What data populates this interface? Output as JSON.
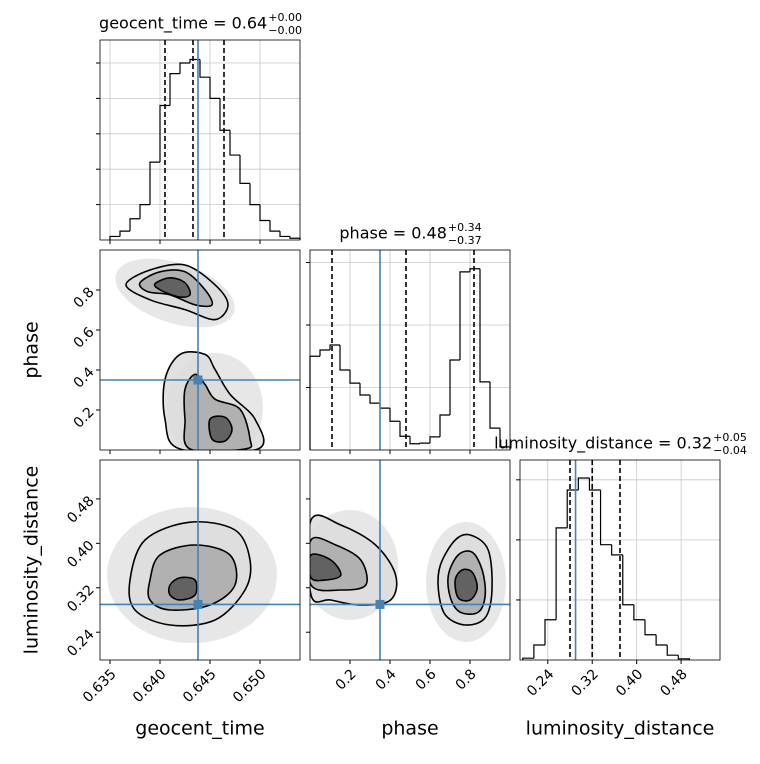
{
  "chart_data": {
    "type": "corner",
    "truth_color": "#4682b4",
    "hist_color": "#000000",
    "contour_fills": [
      "#dcdcdc",
      "#a9a9a9",
      "#555555"
    ],
    "contour_color": "#000000",
    "params": [
      {
        "name": "geocent_time",
        "title": "geocent_time = 0.64",
        "plus": "+0.00",
        "minus": "−0.00",
        "lim": [
          0.634,
          0.654
        ],
        "ticks": [
          0.635,
          {
            "value": 0.64,
            "label": "0.640"
          },
          0.645,
          {
            "value": 0.65,
            "label": "0.650"
          }
        ],
        "truth": 0.6438,
        "quantiles": [
          0.6405,
          0.6433,
          0.6464
        ]
      },
      {
        "name": "phase",
        "title": "phase = 0.48",
        "plus": "+0.34",
        "minus": "−0.37",
        "lim": [
          0,
          1
        ],
        "ticks": [
          0.2,
          0.4,
          0.6,
          0.8
        ],
        "truth": 0.35,
        "quantiles": [
          0.11,
          0.48,
          0.82
        ]
      },
      {
        "name": "luminosity_distance",
        "title": "luminosity_distance = 0.32",
        "plus": "+0.05",
        "minus": "−0.04",
        "lim": [
          0.19,
          0.55
        ],
        "ticks": [
          0.24,
          0.32,
          {
            "value": 0.4,
            "label": "0.40"
          },
          0.48
        ],
        "truth": 0.29,
        "quantiles": [
          0.28,
          0.32,
          0.37
        ]
      }
    ],
    "hists": [
      {
        "bins": [
          0.635,
          0.636,
          0.637,
          0.638,
          0.639,
          0.64,
          0.641,
          0.642,
          0.643,
          0.644,
          0.645,
          0.646,
          0.647,
          0.648,
          0.649,
          0.65,
          0.651,
          0.652,
          0.653,
          0.654
        ],
        "values": [
          0.1,
          0.25,
          0.6,
          1.0,
          2.2,
          3.8,
          4.7,
          5.0,
          5.1,
          4.6,
          4.0,
          3.1,
          2.4,
          1.6,
          1.0,
          0.55,
          0.25,
          0.1,
          0.05
        ],
        "ylim": [
          0,
          5.65
        ],
        "yticks": [
          1,
          2,
          3,
          4,
          5
        ]
      },
      {
        "bins": [
          0,
          0.05,
          0.1,
          0.15,
          0.2,
          0.25,
          0.3,
          0.35,
          0.4,
          0.45,
          0.5,
          0.55,
          0.6,
          0.65,
          0.7,
          0.75,
          0.8,
          0.85,
          0.9,
          0.95,
          1.0
        ],
        "values": [
          1.5,
          1.6,
          1.68,
          1.28,
          1.07,
          0.88,
          0.75,
          0.67,
          0.46,
          0.22,
          0.1,
          0.11,
          0.21,
          0.56,
          1.44,
          2.85,
          2.9,
          1.09,
          0.35,
          0.05
        ],
        "ylim": [
          0,
          3.2
        ],
        "yticks": [
          1,
          2,
          3
        ]
      },
      {
        "bins": [
          0.195,
          0.215,
          0.235,
          0.255,
          0.275,
          0.295,
          0.315,
          0.335,
          0.355,
          0.375,
          0.395,
          0.415,
          0.435,
          0.455,
          0.475,
          0.495
        ],
        "values": [
          0.03,
          0.25,
          0.67,
          2.2,
          2.83,
          3.03,
          2.83,
          1.92,
          1.75,
          0.92,
          0.67,
          0.42,
          0.25,
          0.08,
          0.02
        ],
        "ylim": [
          0,
          3.33
        ],
        "yticks": [
          1,
          2,
          3
        ]
      }
    ],
    "contours": [
      {
        "x_param": 0,
        "y_param": 1,
        "levels": [
          {
            "x": [
              0.6366,
              0.639,
              0.6425,
              0.6455,
              0.6468,
              0.6455,
              0.6425,
              0.639
            ],
            "y": [
              0.826,
              0.9,
              0.925,
              0.826,
              0.726,
              0.652,
              0.702,
              0.751
            ]
          },
          {
            "x": [
              0.638,
              0.64,
              0.6425,
              0.6445,
              0.6452,
              0.6435,
              0.641,
              0.6388
            ],
            "y": [
              0.836,
              0.891,
              0.891,
              0.801,
              0.726,
              0.726,
              0.776,
              0.791
            ]
          },
          {
            "x": [
              0.6395,
              0.641,
              0.6425,
              0.643,
              0.6418,
              0.64
            ],
            "y": [
              0.831,
              0.861,
              0.836,
              0.776,
              0.766,
              0.801
            ]
          }
        ]
      },
      {
        "x_param": 0,
        "y_param": 1,
        "levels": [
          {
            "x": [
              0.642,
              0.6445,
              0.6455,
              0.647,
              0.6495,
              0.6498,
              0.642,
              0.6405,
              0.6405
            ],
            "y": [
              0.478,
              0.478,
              0.403,
              0.279,
              0.154,
              0.005,
              0.005,
              0.154,
              0.353
            ]
          },
          {
            "x": [
              0.6435,
              0.6445,
              0.6455,
              0.648,
              0.649,
              0.6485,
              0.643,
              0.6425,
              0.6425
            ],
            "y": [
              0.378,
              0.328,
              0.254,
              0.204,
              0.055,
              0.005,
              0.005,
              0.154,
              0.304
            ]
          },
          {
            "x": [
              0.645,
              0.6465,
              0.6472,
              0.6465,
              0.6452
            ],
            "y": [
              0.154,
              0.164,
              0.104,
              0.045,
              0.055
            ]
          }
        ]
      },
      {
        "x_param": 0,
        "y_param": 2,
        "levels": [
          {
            "x": [
              0.637,
              0.6385,
              0.643,
              0.6475,
              0.649,
              0.6485,
              0.6455,
              0.641,
              0.6375
            ],
            "y": [
              0.334,
              0.406,
              0.438,
              0.424,
              0.37,
              0.316,
              0.262,
              0.253,
              0.28
            ]
          },
          {
            "x": [
              0.639,
              0.64,
              0.6435,
              0.647,
              0.6475,
              0.645,
              0.641,
              0.639
            ],
            "y": [
              0.334,
              0.379,
              0.397,
              0.379,
              0.325,
              0.289,
              0.28,
              0.298
            ]
          },
          {
            "x": [
              0.641,
              0.642,
              0.6435,
              0.6435,
              0.642,
              0.641
            ],
            "y": [
              0.325,
              0.338,
              0.334,
              0.307,
              0.298,
              0.307
            ]
          }
        ]
      },
      {
        "x_param": 1,
        "y_param": 2,
        "levels": [
          {
            "x": [
              0.005,
              0.154,
              0.328,
              0.428,
              0.403,
              0.254,
              0.104,
              0.005
            ],
            "y": [
              0.442,
              0.433,
              0.397,
              0.343,
              0.298,
              0.289,
              0.298,
              0.307
            ]
          },
          {
            "x": [
              0.005,
              0.129,
              0.254,
              0.279,
              0.154,
              0.005
            ],
            "y": [
              0.406,
              0.397,
              0.37,
              0.325,
              0.316,
              0.325
            ]
          },
          {
            "x": [
              0.005,
              0.104,
              0.154,
              0.08,
              0.005
            ],
            "y": [
              0.379,
              0.37,
              0.343,
              0.334,
              0.338
            ]
          }
        ]
      },
      {
        "x_param": 1,
        "y_param": 2,
        "levels": [
          {
            "x": [
              0.652,
              0.726,
              0.801,
              0.891,
              0.91,
              0.876,
              0.776,
              0.677,
              0.642
            ],
            "y": [
              0.361,
              0.406,
              0.415,
              0.388,
              0.316,
              0.266,
              0.253,
              0.271,
              0.316
            ]
          },
          {
            "x": [
              0.692,
              0.741,
              0.811,
              0.861,
              0.876,
              0.841,
              0.751,
              0.702
            ],
            "y": [
              0.343,
              0.379,
              0.384,
              0.352,
              0.307,
              0.276,
              0.276,
              0.302
            ]
          },
          {
            "x": [
              0.726,
              0.761,
              0.811,
              0.836,
              0.801,
              0.741
            ],
            "y": [
              0.334,
              0.352,
              0.348,
              0.32,
              0.298,
              0.302
            ]
          }
        ]
      }
    ]
  }
}
